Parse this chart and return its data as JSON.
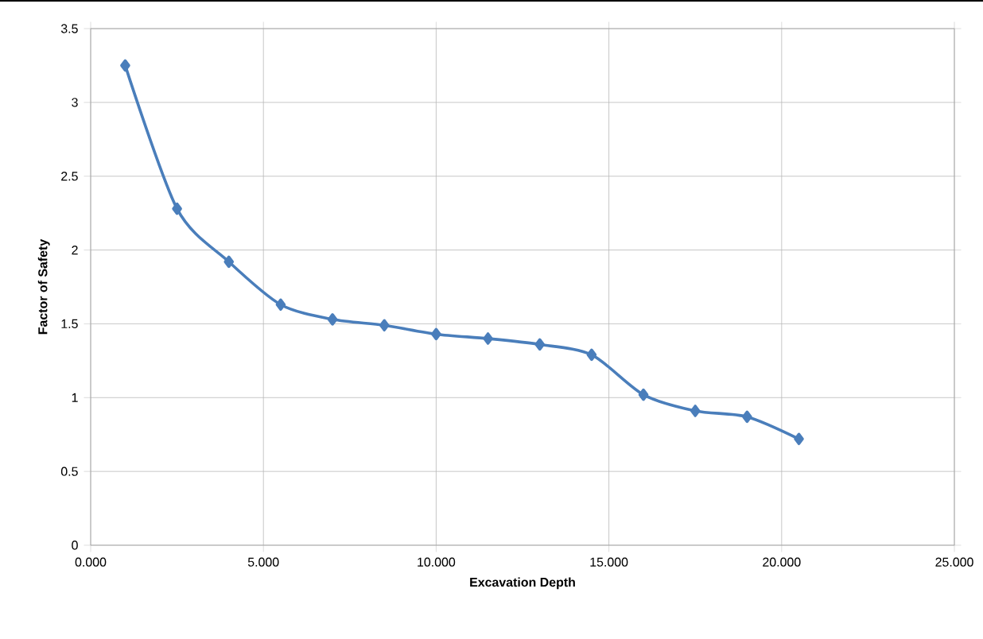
{
  "chart_data": {
    "type": "line",
    "xlabel": "Excavation Depth",
    "ylabel": "Factor of Safety",
    "x": [
      1,
      2.5,
      4,
      5.5,
      7,
      8.5,
      10,
      11.5,
      13,
      14.5,
      16,
      17.5,
      19,
      20.5
    ],
    "series": [
      {
        "color": "#4a7ebb",
        "values": [
          3.25,
          2.28,
          1.92,
          1.63,
          1.53,
          1.49,
          1.43,
          1.4,
          1.36,
          1.29,
          1.02,
          0.91,
          0.87,
          0.72
        ]
      }
    ],
    "xlim": [
      0,
      25
    ],
    "ylim": [
      0,
      3.5
    ],
    "xticks": [
      {
        "value": 0,
        "label": "0.000"
      },
      {
        "value": 5,
        "label": "5.000"
      },
      {
        "value": 10,
        "label": "10.000"
      },
      {
        "value": 15,
        "label": "15.000"
      },
      {
        "value": 20,
        "label": "20.000"
      },
      {
        "value": 25,
        "label": "25.000"
      }
    ],
    "yticks": [
      0,
      0.5,
      1,
      1.5,
      2,
      2.5,
      3,
      3.5
    ],
    "grid": true,
    "marker": "diamond",
    "line_style": "solid"
  }
}
